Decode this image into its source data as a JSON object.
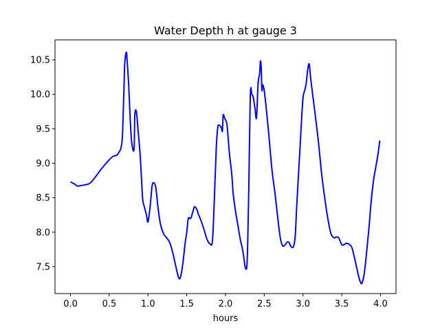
{
  "chart_data": {
    "type": "line",
    "title": "Water Depth h at gauge 3",
    "xlabel": "hours",
    "ylabel": "",
    "xlim": [
      -0.2,
      4.2
    ],
    "ylim": [
      7.11,
      10.79
    ],
    "xticks": [
      0.0,
      0.5,
      1.0,
      1.5,
      2.0,
      2.5,
      3.0,
      3.5,
      4.0
    ],
    "xtick_labels": [
      "0.0",
      "0.5",
      "1.0",
      "1.5",
      "2.0",
      "2.5",
      "3.0",
      "3.5",
      "4.0"
    ],
    "yticks": [
      7.5,
      8.0,
      8.5,
      9.0,
      9.5,
      10.0,
      10.5
    ],
    "ytick_labels": [
      "7.5",
      "8.0",
      "8.5",
      "9.0",
      "9.5",
      "10.0",
      "10.5"
    ],
    "grid": false,
    "legend": "none",
    "series": [
      {
        "color": "#0000ff",
        "x": [
          0.0,
          0.05,
          0.09,
          0.15,
          0.2,
          0.25,
          0.3,
          0.4,
          0.5,
          0.55,
          0.6,
          0.63,
          0.65,
          0.67,
          0.69,
          0.7,
          0.72,
          0.73,
          0.75,
          0.77,
          0.79,
          0.82,
          0.83,
          0.85,
          0.87,
          0.9,
          0.93,
          0.95,
          0.98,
          1.0,
          1.03,
          1.05,
          1.07,
          1.1,
          1.13,
          1.16,
          1.2,
          1.24,
          1.28,
          1.32,
          1.35,
          1.38,
          1.4,
          1.42,
          1.45,
          1.48,
          1.5,
          1.52,
          1.55,
          1.58,
          1.6,
          1.63,
          1.65,
          1.68,
          1.72,
          1.76,
          1.8,
          1.83,
          1.85,
          1.88,
          1.9,
          1.92,
          1.94,
          1.95,
          1.96,
          1.97,
          1.99,
          2.0,
          2.02,
          2.05,
          2.08,
          2.1,
          2.13,
          2.16,
          2.19,
          2.22,
          2.24,
          2.26,
          2.28,
          2.3,
          2.32,
          2.34,
          2.36,
          2.38,
          2.4,
          2.42,
          2.44,
          2.45,
          2.46,
          2.47,
          2.48,
          2.5,
          2.53,
          2.56,
          2.6,
          2.64,
          2.68,
          2.71,
          2.74,
          2.77,
          2.8,
          2.82,
          2.84,
          2.86,
          2.88,
          2.9,
          2.92,
          2.95,
          2.98,
          3.0,
          3.02,
          3.04,
          3.06,
          3.08,
          3.1,
          3.13,
          3.16,
          3.2,
          3.24,
          3.28,
          3.32,
          3.36,
          3.4,
          3.43,
          3.46,
          3.5,
          3.53,
          3.56,
          3.6,
          3.63,
          3.66,
          3.69,
          3.72,
          3.74,
          3.76,
          3.79,
          3.82,
          3.85,
          3.88,
          3.91,
          3.94,
          3.97,
          3.99
        ],
        "y": [
          8.73,
          8.7,
          8.67,
          8.68,
          8.69,
          8.71,
          8.77,
          8.92,
          9.05,
          9.1,
          9.12,
          9.17,
          9.22,
          9.4,
          10.1,
          10.45,
          10.61,
          10.5,
          10.15,
          9.65,
          9.3,
          9.2,
          9.7,
          9.75,
          9.5,
          9.1,
          8.5,
          8.38,
          8.25,
          8.15,
          8.4,
          8.65,
          8.72,
          8.65,
          8.35,
          8.12,
          7.98,
          7.92,
          7.85,
          7.7,
          7.55,
          7.4,
          7.33,
          7.35,
          7.55,
          7.85,
          8.0,
          8.2,
          8.2,
          8.3,
          8.37,
          8.33,
          8.26,
          8.18,
          8.05,
          7.9,
          7.83,
          7.86,
          8.3,
          9.2,
          9.52,
          9.55,
          9.53,
          9.5,
          9.47,
          9.7,
          9.65,
          9.63,
          9.55,
          9.15,
          8.85,
          8.55,
          8.3,
          8.1,
          7.9,
          7.75,
          7.6,
          7.47,
          7.6,
          8.6,
          9.99,
          10.0,
          9.95,
          9.8,
          9.66,
          10.15,
          10.3,
          10.48,
          10.4,
          10.06,
          10.14,
          10.05,
          9.75,
          9.4,
          8.9,
          8.55,
          8.15,
          7.9,
          7.8,
          7.82,
          7.86,
          7.85,
          7.8,
          7.78,
          7.8,
          7.95,
          8.4,
          9.0,
          9.6,
          9.95,
          10.05,
          10.15,
          10.35,
          10.44,
          10.22,
          9.95,
          9.68,
          9.3,
          8.85,
          8.5,
          8.2,
          7.98,
          7.92,
          7.93,
          7.92,
          7.82,
          7.82,
          7.84,
          7.82,
          7.78,
          7.65,
          7.5,
          7.35,
          7.28,
          7.26,
          7.4,
          7.7,
          8.05,
          8.45,
          8.75,
          8.95,
          9.15,
          9.33
        ]
      }
    ]
  }
}
